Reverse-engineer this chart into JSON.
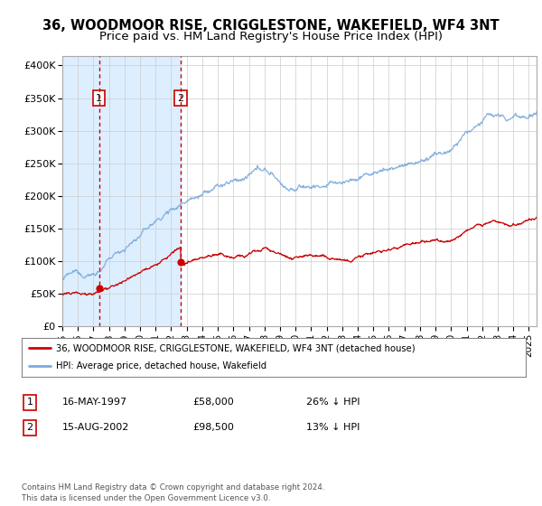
{
  "title": "36, WOODMOOR RISE, CRIGGLESTONE, WAKEFIELD, WF4 3NT",
  "subtitle": "Price paid vs. HM Land Registry's House Price Index (HPI)",
  "title_fontsize": 10.5,
  "subtitle_fontsize": 9.5,
  "ylabel_ticks": [
    "£0",
    "£50K",
    "£100K",
    "£150K",
    "£200K",
    "£250K",
    "£300K",
    "£350K",
    "£400K"
  ],
  "ytick_values": [
    0,
    50000,
    100000,
    150000,
    200000,
    250000,
    300000,
    350000,
    400000
  ],
  "ylim": [
    0,
    415000
  ],
  "xlim_start": 1995.0,
  "xlim_end": 2025.5,
  "xtick_years": [
    1995,
    1996,
    1997,
    1998,
    1999,
    2000,
    2001,
    2002,
    2003,
    2004,
    2005,
    2006,
    2007,
    2008,
    2009,
    2010,
    2011,
    2012,
    2013,
    2014,
    2015,
    2016,
    2017,
    2018,
    2019,
    2020,
    2021,
    2022,
    2023,
    2024,
    2025
  ],
  "purchase1_date": 1997.37,
  "purchase1_price": 58000,
  "purchase2_date": 2002.62,
  "purchase2_price": 98500,
  "legend_line1": "36, WOODMOOR RISE, CRIGGLESTONE, WAKEFIELD, WF4 3NT (detached house)",
  "legend_line2": "HPI: Average price, detached house, Wakefield",
  "table_row1_num": "1",
  "table_row1_date": "16-MAY-1997",
  "table_row1_price": "£58,000",
  "table_row1_hpi": "26% ↓ HPI",
  "table_row2_num": "2",
  "table_row2_date": "15-AUG-2002",
  "table_row2_price": "£98,500",
  "table_row2_hpi": "13% ↓ HPI",
  "footnote": "Contains HM Land Registry data © Crown copyright and database right 2024.\nThis data is licensed under the Open Government Licence v3.0.",
  "hpi_color": "#7aaadd",
  "price_color": "#cc0000",
  "shade_color": "#ddeeff",
  "dot_color": "#cc0000",
  "grid_color": "#cccccc",
  "bg_color": "#ffffff"
}
